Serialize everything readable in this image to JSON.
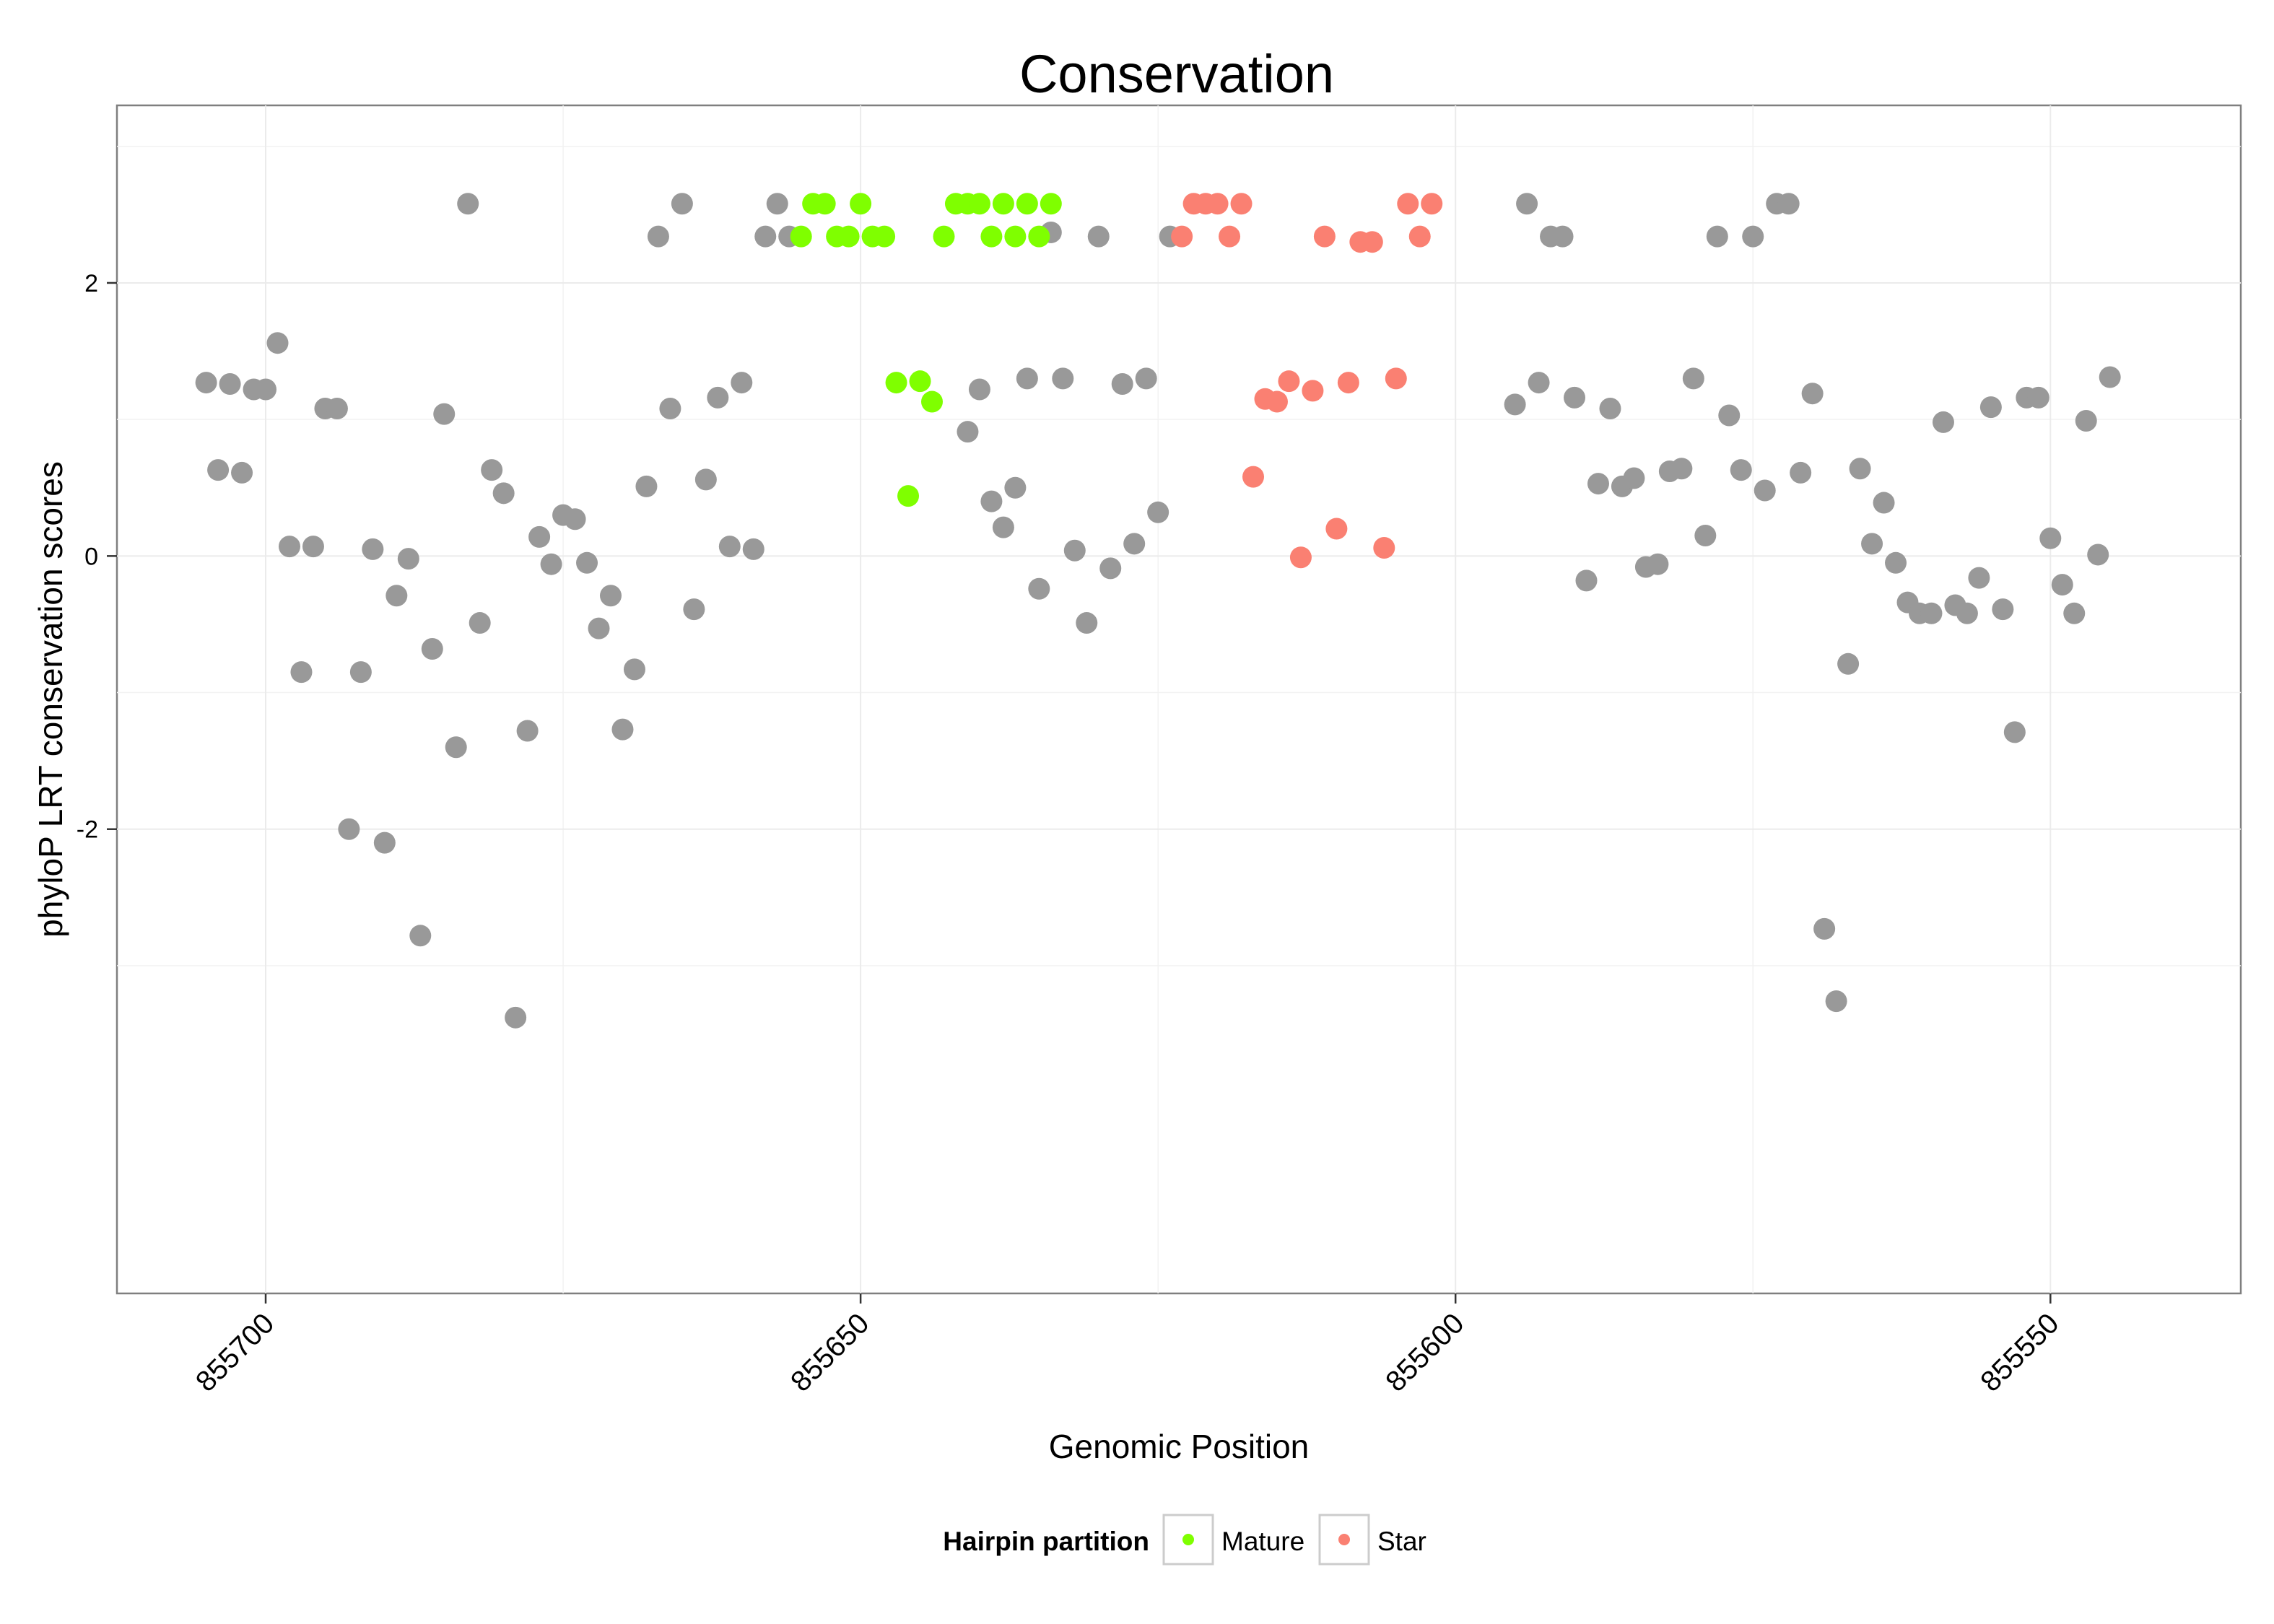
{
  "chart_data": {
    "type": "scatter",
    "title": "Conservation",
    "xlabel": "Genomic Position",
    "ylabel": "phyloP LRT conservation scores",
    "x_reversed": true,
    "xlim": [
      855712.5,
      855534
    ],
    "ylim": [
      -5.4,
      3.3
    ],
    "x_ticks": [
      855700,
      855650,
      855600,
      855550
    ],
    "x_tick_labels": [
      "855700",
      "855650",
      "855600",
      "855550"
    ],
    "y_ticks": [
      -2,
      0,
      2
    ],
    "y_tick_labels": [
      "-2",
      "0",
      "2"
    ],
    "grid": true,
    "legend": {
      "title": "Hairpin partition",
      "position": "bottom",
      "entries": [
        {
          "label": "Mature",
          "color": "#7fff00"
        },
        {
          "label": "Star",
          "color": "#fa8072"
        }
      ]
    },
    "series": [
      {
        "name": "Other",
        "color": "#999999",
        "points": [
          [
            855705,
            1.27
          ],
          [
            855704,
            0.63
          ],
          [
            855703,
            1.26
          ],
          [
            855702,
            0.61
          ],
          [
            855701,
            1.22
          ],
          [
            855700,
            1.22
          ],
          [
            855699,
            1.56
          ],
          [
            855698,
            0.07
          ],
          [
            855697,
            -0.85
          ],
          [
            855696,
            0.07
          ],
          [
            855695,
            1.08
          ],
          [
            855694,
            1.08
          ],
          [
            855693,
            -2.0
          ],
          [
            855692,
            -0.85
          ],
          [
            855691,
            0.05
          ],
          [
            855690,
            -2.1
          ],
          [
            855689,
            -0.29
          ],
          [
            855688,
            -0.02
          ],
          [
            855687,
            -2.78
          ],
          [
            855686,
            -0.68
          ],
          [
            855685,
            1.04
          ],
          [
            855684,
            -1.4
          ],
          [
            855683,
            2.58
          ],
          [
            855682,
            -0.49
          ],
          [
            855681,
            0.63
          ],
          [
            855680,
            0.46
          ],
          [
            855679,
            -3.38
          ],
          [
            855678,
            -1.28
          ],
          [
            855677,
            0.14
          ],
          [
            855676,
            -0.06
          ],
          [
            855675,
            0.3
          ],
          [
            855674,
            0.27
          ],
          [
            855673,
            -0.05
          ],
          [
            855672,
            -0.53
          ],
          [
            855671,
            -0.29
          ],
          [
            855670,
            -1.27
          ],
          [
            855669,
            -0.83
          ],
          [
            855668,
            0.51
          ],
          [
            855667,
            2.34
          ],
          [
            855666,
            1.08
          ],
          [
            855665,
            2.58
          ],
          [
            855664,
            -0.39
          ],
          [
            855663,
            0.56
          ],
          [
            855662,
            1.16
          ],
          [
            855661,
            0.07
          ],
          [
            855660,
            1.27
          ],
          [
            855659,
            0.05
          ],
          [
            855658,
            2.34
          ],
          [
            855657,
            2.58
          ],
          [
            855656,
            2.34
          ],
          [
            855641,
            0.91
          ],
          [
            855640,
            1.22
          ],
          [
            855639,
            0.4
          ],
          [
            855638,
            0.21
          ],
          [
            855637,
            0.5
          ],
          [
            855636,
            1.3
          ],
          [
            855635,
            -0.24
          ],
          [
            855634,
            2.37
          ],
          [
            855633,
            1.3
          ],
          [
            855632,
            0.04
          ],
          [
            855631,
            -0.49
          ],
          [
            855630,
            2.34
          ],
          [
            855629,
            -0.09
          ],
          [
            855628,
            1.26
          ],
          [
            855627,
            0.09
          ],
          [
            855626,
            1.3
          ],
          [
            855625,
            0.32
          ],
          [
            855624,
            2.34
          ],
          [
            855595,
            1.11
          ],
          [
            855594,
            2.58
          ],
          [
            855593,
            1.27
          ],
          [
            855592,
            2.34
          ],
          [
            855591,
            2.34
          ],
          [
            855590,
            1.16
          ],
          [
            855589,
            -0.18
          ],
          [
            855588,
            0.53
          ],
          [
            855587,
            1.08
          ],
          [
            855586,
            0.51
          ],
          [
            855585,
            0.57
          ],
          [
            855584,
            -0.08
          ],
          [
            855583,
            -0.06
          ],
          [
            855582,
            0.62
          ],
          [
            855581,
            0.64
          ],
          [
            855580,
            1.3
          ],
          [
            855579,
            0.15
          ],
          [
            855578,
            2.34
          ],
          [
            855577,
            1.03
          ],
          [
            855576,
            0.63
          ],
          [
            855575,
            2.34
          ],
          [
            855574,
            0.48
          ],
          [
            855573,
            2.58
          ],
          [
            855572,
            2.58
          ],
          [
            855571,
            0.61
          ],
          [
            855570,
            1.19
          ],
          [
            855569,
            -2.73
          ],
          [
            855568,
            -3.26
          ],
          [
            855567,
            -0.79
          ],
          [
            855566,
            0.64
          ],
          [
            855565,
            0.09
          ],
          [
            855564,
            0.39
          ],
          [
            855563,
            -0.05
          ],
          [
            855562,
            -0.34
          ],
          [
            855561,
            -0.42
          ],
          [
            855560,
            -0.42
          ],
          [
            855559,
            0.98
          ],
          [
            855558,
            -0.36
          ],
          [
            855557,
            -0.42
          ],
          [
            855556,
            -0.16
          ],
          [
            855555,
            1.09
          ],
          [
            855554,
            -0.39
          ],
          [
            855553,
            -1.29
          ],
          [
            855552,
            1.16
          ],
          [
            855551,
            1.16
          ],
          [
            855550,
            0.13
          ],
          [
            855549,
            -0.21
          ],
          [
            855548,
            -0.42
          ],
          [
            855547,
            0.99
          ],
          [
            855546,
            0.01
          ],
          [
            855545,
            1.31
          ]
        ]
      },
      {
        "name": "Mature",
        "color": "#7fff00",
        "points": [
          [
            855655,
            2.34
          ],
          [
            855654,
            2.58
          ],
          [
            855653,
            2.58
          ],
          [
            855652,
            2.34
          ],
          [
            855651,
            2.34
          ],
          [
            855650,
            2.58
          ],
          [
            855649,
            2.34
          ],
          [
            855648,
            2.34
          ],
          [
            855647,
            1.27
          ],
          [
            855646,
            0.44
          ],
          [
            855645,
            1.28
          ],
          [
            855644,
            1.13
          ],
          [
            855643,
            2.34
          ],
          [
            855642,
            2.58
          ],
          [
            855641,
            2.58
          ],
          [
            855640,
            2.58
          ],
          [
            855639,
            2.34
          ],
          [
            855638,
            2.58
          ],
          [
            855637,
            2.34
          ],
          [
            855636,
            2.58
          ],
          [
            855635,
            2.34
          ],
          [
            855634,
            2.58
          ]
        ]
      },
      {
        "name": "Star",
        "color": "#fa8072",
        "points": [
          [
            855623,
            2.34
          ],
          [
            855622,
            2.58
          ],
          [
            855621,
            2.58
          ],
          [
            855620,
            2.58
          ],
          [
            855619,
            2.34
          ],
          [
            855618,
            2.58
          ],
          [
            855617,
            0.58
          ],
          [
            855616,
            1.15
          ],
          [
            855615,
            1.13
          ],
          [
            855614,
            1.28
          ],
          [
            855613,
            -0.01
          ],
          [
            855612,
            1.21
          ],
          [
            855611,
            2.34
          ],
          [
            855610,
            0.2
          ],
          [
            855609,
            1.27
          ],
          [
            855608,
            2.3
          ],
          [
            855607,
            2.3
          ],
          [
            855606,
            0.06
          ],
          [
            855605,
            1.3
          ],
          [
            855604,
            2.58
          ],
          [
            855603,
            2.34
          ],
          [
            855602,
            2.58
          ]
        ]
      }
    ]
  }
}
